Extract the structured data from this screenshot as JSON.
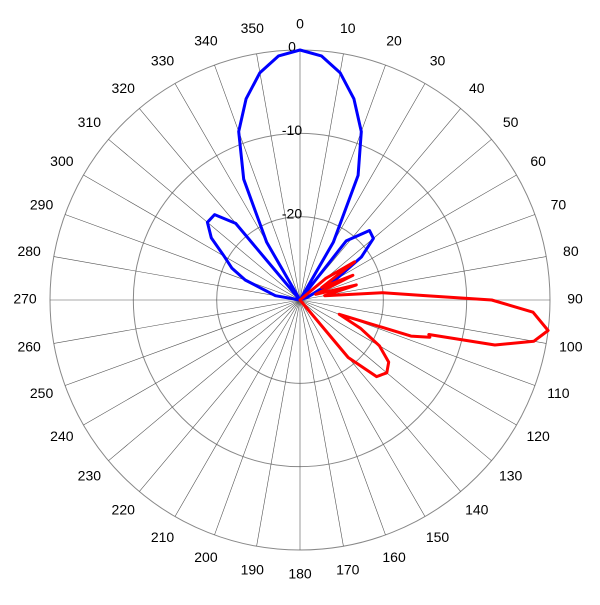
{
  "chart_data": {
    "type": "polar",
    "thetaticks": [
      0,
      10,
      20,
      30,
      40,
      50,
      60,
      70,
      80,
      90,
      100,
      110,
      120,
      130,
      140,
      150,
      160,
      170,
      180,
      190,
      200,
      210,
      220,
      230,
      240,
      250,
      260,
      270,
      280,
      290,
      300,
      310,
      320,
      330,
      340,
      350
    ],
    "rlim": [
      -30,
      0
    ],
    "rticks": [
      -20,
      -10,
      0
    ],
    "grid": true,
    "series": [
      {
        "color": "#0000ff",
        "theta": [
          270,
          280,
          290,
          295,
          300,
          305,
          310,
          315,
          320,
          327,
          330,
          335,
          340,
          345,
          350,
          355,
          0,
          5,
          10,
          15,
          20,
          25,
          30,
          33,
          38,
          45,
          50,
          55,
          60,
          70,
          80,
          90
        ],
        "values": [
          -30,
          -27,
          -23,
          -21,
          -19.5,
          -17,
          -15.5,
          -15.5,
          -18,
          -30,
          -22,
          -14,
          -8.5,
          -5,
          -2.3,
          -0.6,
          0,
          -0.6,
          -2.3,
          -5,
          -8.5,
          -13.5,
          -22,
          -30,
          -21,
          -18.2,
          -18.5,
          -21,
          -25,
          -29,
          -30,
          -30
        ]
      },
      {
        "color": "#ff0000",
        "theta": [
          40,
          50,
          55,
          60,
          65,
          70,
          75,
          80,
          85,
          88,
          90,
          93,
          97,
          100,
          103,
          105,
          106,
          108,
          110,
          115,
          120,
          125,
          130,
          135,
          140,
          145,
          150
        ],
        "values": [
          -30,
          -26,
          -22,
          -27,
          -23,
          -28,
          -23,
          -27,
          -20,
          -15,
          -7,
          -2,
          0,
          -1.5,
          -6,
          -14,
          -13.8,
          -16,
          -25,
          -22,
          -19,
          -17,
          -16.4,
          -17,
          -21,
          -30,
          -30
        ]
      }
    ]
  }
}
